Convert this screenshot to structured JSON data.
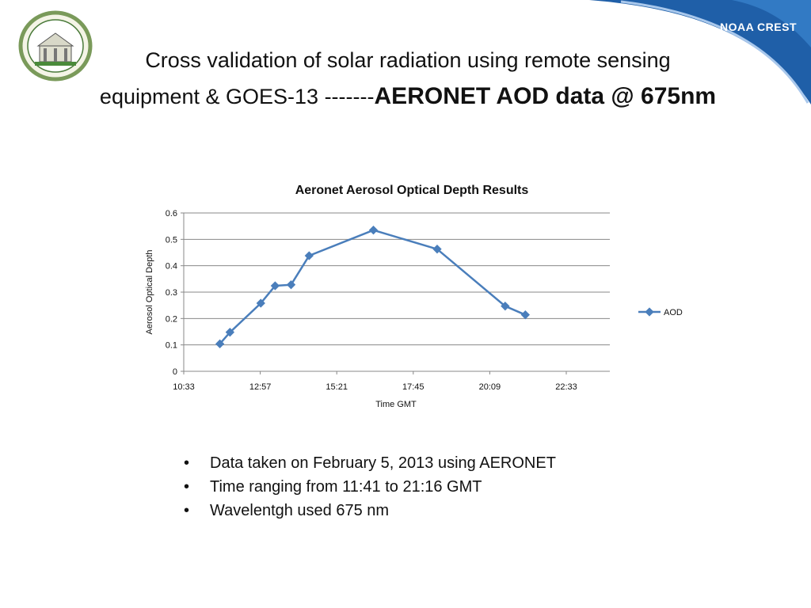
{
  "slide": {
    "title_part1": "Cross validation of solar radiation using remote sensing",
    "title_part2": "equipment & GOES-13 -------",
    "title_bold": "AERONET AOD data @ 675nm",
    "logo_text": "NOAA CREST",
    "bullets": [
      "Data taken on February 5, 2013 using AERONET",
      "Time ranging from 11:41 to 21:16 GMT",
      "Wavelentgh used 675 nm"
    ],
    "bullet_glyph": "•"
  },
  "colors": {
    "series": "#4a7ebb",
    "grid": "#888888",
    "banner": "#1f5fa8"
  },
  "chart_data": {
    "type": "line",
    "title": "Aeronet Aerosol Optical Depth Results",
    "xlabel": "Time GMT",
    "ylabel": "Aerosol Optical Depth",
    "x_tick_labels": [
      "10:33",
      "12:57",
      "15:21",
      "17:45",
      "20:09",
      "22:33"
    ],
    "xlim": [
      "10:33",
      "23:55"
    ],
    "y_ticks": [
      "0",
      "0.1",
      "0.2",
      "0.3",
      "0.4",
      "0.5",
      "0.6"
    ],
    "ylim": [
      0,
      0.6
    ],
    "grid": true,
    "legend": "right",
    "series": [
      {
        "name": "AOD",
        "x": [
          "11:41",
          "12:00",
          "12:58",
          "13:25",
          "13:55",
          "14:29",
          "16:30",
          "18:30",
          "20:38",
          "21:16"
        ],
        "values": [
          0.104,
          0.148,
          0.258,
          0.324,
          0.328,
          0.438,
          0.535,
          0.463,
          0.247,
          0.214
        ]
      }
    ]
  }
}
